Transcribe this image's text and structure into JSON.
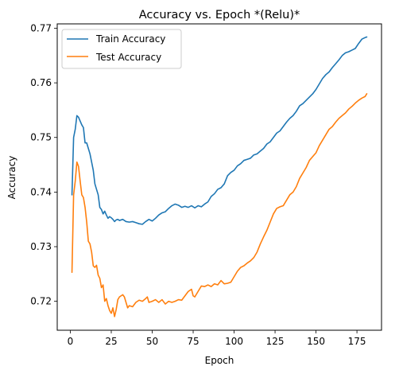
{
  "chart_data": {
    "type": "line",
    "title": "Accuracy vs. Epoch  *(Relu)*",
    "xlabel": "Epoch",
    "ylabel": "Accuracy",
    "xlim": [
      -8,
      190
    ],
    "ylim": [
      0.7147,
      0.7708
    ],
    "xticks": [
      0,
      25,
      50,
      75,
      100,
      125,
      150,
      175
    ],
    "yticks": [
      0.72,
      0.73,
      0.74,
      0.75,
      0.76,
      0.77
    ],
    "ytick_labels": [
      "0.72",
      "0.73",
      "0.74",
      "0.75",
      "0.76",
      "0.77"
    ],
    "grid": false,
    "legend_position": "upper-left",
    "series": [
      {
        "name": "Train Accuracy",
        "color": "#1f77b4",
        "points": [
          [
            1,
            0.7395
          ],
          [
            2,
            0.75
          ],
          [
            3,
            0.7515
          ],
          [
            4,
            0.754
          ],
          [
            5,
            0.7537
          ],
          [
            6,
            0.753
          ],
          [
            7,
            0.7523
          ],
          [
            8,
            0.7518
          ],
          [
            9,
            0.749
          ],
          [
            10,
            0.749
          ],
          [
            11,
            0.748
          ],
          [
            12,
            0.747
          ],
          [
            13,
            0.7455
          ],
          [
            14,
            0.744
          ],
          [
            15,
            0.7415
          ],
          [
            16,
            0.7405
          ],
          [
            17,
            0.7395
          ],
          [
            18,
            0.7372
          ],
          [
            19,
            0.7368
          ],
          [
            20,
            0.736
          ],
          [
            21,
            0.7365
          ],
          [
            22,
            0.7358
          ],
          [
            23,
            0.7352
          ],
          [
            24,
            0.7355
          ],
          [
            25,
            0.7353
          ],
          [
            26,
            0.735
          ],
          [
            27,
            0.7346
          ],
          [
            28,
            0.7349
          ],
          [
            29,
            0.735
          ],
          [
            30,
            0.7348
          ],
          [
            32,
            0.735
          ],
          [
            34,
            0.7346
          ],
          [
            36,
            0.7345
          ],
          [
            38,
            0.7346
          ],
          [
            40,
            0.7344
          ],
          [
            42,
            0.7342
          ],
          [
            44,
            0.7341
          ],
          [
            46,
            0.7346
          ],
          [
            48,
            0.735
          ],
          [
            50,
            0.7347
          ],
          [
            52,
            0.7352
          ],
          [
            54,
            0.7358
          ],
          [
            56,
            0.7362
          ],
          [
            58,
            0.7364
          ],
          [
            60,
            0.737
          ],
          [
            62,
            0.7375
          ],
          [
            64,
            0.7378
          ],
          [
            66,
            0.7376
          ],
          [
            68,
            0.7372
          ],
          [
            70,
            0.7374
          ],
          [
            72,
            0.7372
          ],
          [
            74,
            0.7375
          ],
          [
            76,
            0.7371
          ],
          [
            78,
            0.7375
          ],
          [
            80,
            0.7373
          ],
          [
            82,
            0.7378
          ],
          [
            84,
            0.7382
          ],
          [
            86,
            0.7392
          ],
          [
            88,
            0.7397
          ],
          [
            90,
            0.7405
          ],
          [
            92,
            0.7408
          ],
          [
            94,
            0.7415
          ],
          [
            96,
            0.743
          ],
          [
            98,
            0.7436
          ],
          [
            100,
            0.744
          ],
          [
            102,
            0.7448
          ],
          [
            104,
            0.7452
          ],
          [
            106,
            0.7458
          ],
          [
            108,
            0.746
          ],
          [
            110,
            0.7462
          ],
          [
            112,
            0.7468
          ],
          [
            114,
            0.747
          ],
          [
            116,
            0.7475
          ],
          [
            118,
            0.748
          ],
          [
            120,
            0.7488
          ],
          [
            122,
            0.7492
          ],
          [
            124,
            0.75
          ],
          [
            126,
            0.7508
          ],
          [
            128,
            0.7512
          ],
          [
            130,
            0.752
          ],
          [
            132,
            0.7528
          ],
          [
            134,
            0.7535
          ],
          [
            136,
            0.754
          ],
          [
            138,
            0.7548
          ],
          [
            140,
            0.7558
          ],
          [
            142,
            0.7562
          ],
          [
            144,
            0.7568
          ],
          [
            146,
            0.7574
          ],
          [
            148,
            0.758
          ],
          [
            150,
            0.7588
          ],
          [
            152,
            0.7598
          ],
          [
            154,
            0.7608
          ],
          [
            156,
            0.7615
          ],
          [
            158,
            0.762
          ],
          [
            160,
            0.7628
          ],
          [
            162,
            0.7635
          ],
          [
            164,
            0.7642
          ],
          [
            166,
            0.765
          ],
          [
            168,
            0.7655
          ],
          [
            170,
            0.7657
          ],
          [
            172,
            0.766
          ],
          [
            174,
            0.7663
          ],
          [
            176,
            0.7672
          ],
          [
            178,
            0.768
          ],
          [
            180,
            0.7683
          ],
          [
            181,
            0.7684
          ]
        ]
      },
      {
        "name": "Test Accuracy",
        "color": "#ff7f0e",
        "points": [
          [
            1,
            0.7253
          ],
          [
            2,
            0.7395
          ],
          [
            3,
            0.742
          ],
          [
            4,
            0.7455
          ],
          [
            5,
            0.7447
          ],
          [
            6,
            0.742
          ],
          [
            7,
            0.7395
          ],
          [
            8,
            0.739
          ],
          [
            9,
            0.7372
          ],
          [
            10,
            0.7345
          ],
          [
            11,
            0.731
          ],
          [
            12,
            0.7305
          ],
          [
            13,
            0.729
          ],
          [
            14,
            0.7265
          ],
          [
            15,
            0.7262
          ],
          [
            16,
            0.7266
          ],
          [
            17,
            0.7248
          ],
          [
            18,
            0.7242
          ],
          [
            19,
            0.7225
          ],
          [
            20,
            0.723
          ],
          [
            21,
            0.72
          ],
          [
            22,
            0.7205
          ],
          [
            23,
            0.7192
          ],
          [
            24,
            0.7183
          ],
          [
            25,
            0.7178
          ],
          [
            26,
            0.7188
          ],
          [
            27,
            0.7172
          ],
          [
            28,
            0.7185
          ],
          [
            29,
            0.7203
          ],
          [
            30,
            0.7208
          ],
          [
            31,
            0.721
          ],
          [
            32,
            0.7212
          ],
          [
            33,
            0.7208
          ],
          [
            34,
            0.7198
          ],
          [
            35,
            0.7188
          ],
          [
            36,
            0.7192
          ],
          [
            38,
            0.719
          ],
          [
            40,
            0.7198
          ],
          [
            42,
            0.7202
          ],
          [
            44,
            0.72
          ],
          [
            46,
            0.7205
          ],
          [
            47,
            0.7208
          ],
          [
            48,
            0.7198
          ],
          [
            50,
            0.72
          ],
          [
            52,
            0.7203
          ],
          [
            54,
            0.7198
          ],
          [
            56,
            0.7203
          ],
          [
            58,
            0.7195
          ],
          [
            60,
            0.72
          ],
          [
            62,
            0.7198
          ],
          [
            64,
            0.72
          ],
          [
            66,
            0.7203
          ],
          [
            68,
            0.7202
          ],
          [
            70,
            0.721
          ],
          [
            72,
            0.7218
          ],
          [
            74,
            0.7222
          ],
          [
            75,
            0.721
          ],
          [
            76,
            0.7208
          ],
          [
            78,
            0.7218
          ],
          [
            80,
            0.7228
          ],
          [
            82,
            0.7227
          ],
          [
            84,
            0.723
          ],
          [
            86,
            0.7227
          ],
          [
            88,
            0.7232
          ],
          [
            90,
            0.723
          ],
          [
            92,
            0.7238
          ],
          [
            94,
            0.7232
          ],
          [
            96,
            0.7233
          ],
          [
            98,
            0.7235
          ],
          [
            100,
            0.7245
          ],
          [
            102,
            0.7255
          ],
          [
            104,
            0.7262
          ],
          [
            106,
            0.7265
          ],
          [
            108,
            0.727
          ],
          [
            110,
            0.7274
          ],
          [
            112,
            0.728
          ],
          [
            114,
            0.729
          ],
          [
            116,
            0.7305
          ],
          [
            118,
            0.7318
          ],
          [
            120,
            0.733
          ],
          [
            122,
            0.7345
          ],
          [
            124,
            0.736
          ],
          [
            126,
            0.737
          ],
          [
            128,
            0.7373
          ],
          [
            130,
            0.7375
          ],
          [
            132,
            0.7385
          ],
          [
            134,
            0.7395
          ],
          [
            136,
            0.74
          ],
          [
            138,
            0.741
          ],
          [
            140,
            0.7425
          ],
          [
            142,
            0.7435
          ],
          [
            144,
            0.7445
          ],
          [
            146,
            0.7458
          ],
          [
            148,
            0.7465
          ],
          [
            150,
            0.7472
          ],
          [
            152,
            0.7485
          ],
          [
            154,
            0.7495
          ],
          [
            156,
            0.7505
          ],
          [
            158,
            0.7515
          ],
          [
            160,
            0.752
          ],
          [
            162,
            0.7528
          ],
          [
            164,
            0.7535
          ],
          [
            166,
            0.754
          ],
          [
            168,
            0.7545
          ],
          [
            170,
            0.7552
          ],
          [
            172,
            0.7557
          ],
          [
            174,
            0.7563
          ],
          [
            176,
            0.7568
          ],
          [
            178,
            0.7572
          ],
          [
            180,
            0.7575
          ],
          [
            181,
            0.758
          ]
        ]
      }
    ]
  }
}
